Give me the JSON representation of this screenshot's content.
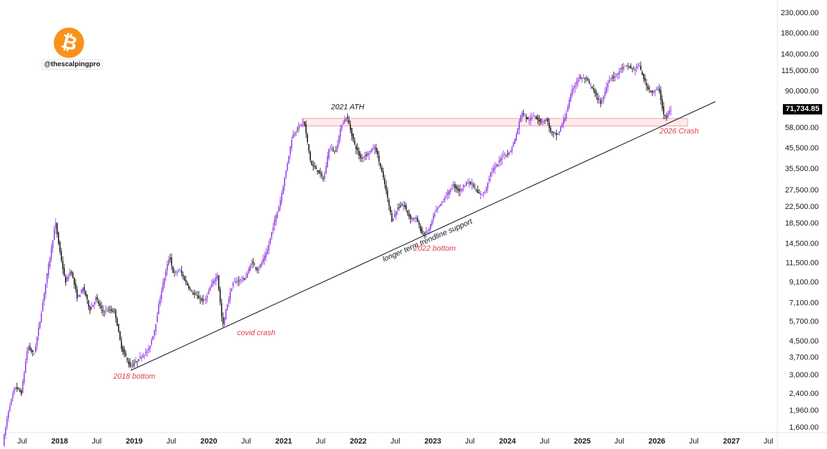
{
  "brand": {
    "logo_icon": "bitcoin-icon",
    "logo_glyph": "₿",
    "logo_color": "#f7931a",
    "handle": "@thescalpingpro"
  },
  "current_price_label": "71,734.85",
  "colors": {
    "bull": "#8a2be2",
    "bear": "#000000",
    "annotation_red": "#e03c4a",
    "zone_fill": "#fde2e4",
    "zone_stroke": "#f4a0a8"
  },
  "chart_data": {
    "type": "candlestick",
    "scale": "log",
    "ylim": [
      1500,
      250000
    ],
    "y_ticks": [
      "230,000.00",
      "180,000.00",
      "140,000.00",
      "115,000.00",
      "90,000.00",
      "71,000.00",
      "58,000.00",
      "45,500.00",
      "35,500.00",
      "27,500.00",
      "22,500.00",
      "18,500.00",
      "14,500.00",
      "11,500.00",
      "9,100.00",
      "7,100.00",
      "5,700.00",
      "4,500.00",
      "3,700.00",
      "3,000.00",
      "2,400.00",
      "1,960.00",
      "1,600.00"
    ],
    "y_tick_values": [
      230000,
      180000,
      140000,
      115000,
      90000,
      71000,
      58000,
      45500,
      35500,
      27500,
      22500,
      18500,
      14500,
      11500,
      9100,
      7100,
      5700,
      4500,
      3700,
      3000,
      2400,
      1960,
      1600
    ],
    "x_ticks": [
      {
        "label": "Jul",
        "date": "2017-07-01",
        "bold": false
      },
      {
        "label": "2018",
        "date": "2018-01-01",
        "bold": true
      },
      {
        "label": "Jul",
        "date": "2018-07-01",
        "bold": false
      },
      {
        "label": "2019",
        "date": "2019-01-01",
        "bold": true
      },
      {
        "label": "Jul",
        "date": "2019-07-01",
        "bold": false
      },
      {
        "label": "2020",
        "date": "2020-01-01",
        "bold": true
      },
      {
        "label": "Jul",
        "date": "2020-07-01",
        "bold": false
      },
      {
        "label": "2021",
        "date": "2021-01-01",
        "bold": true
      },
      {
        "label": "Jul",
        "date": "2021-07-01",
        "bold": false
      },
      {
        "label": "2022",
        "date": "2022-01-01",
        "bold": true
      },
      {
        "label": "Jul",
        "date": "2022-07-01",
        "bold": false
      },
      {
        "label": "2023",
        "date": "2023-01-01",
        "bold": true
      },
      {
        "label": "Jul",
        "date": "2023-07-01",
        "bold": false
      },
      {
        "label": "2024",
        "date": "2024-01-01",
        "bold": true
      },
      {
        "label": "Jul",
        "date": "2024-07-01",
        "bold": false
      },
      {
        "label": "2025",
        "date": "2025-01-01",
        "bold": true
      },
      {
        "label": "Jul",
        "date": "2025-07-01",
        "bold": false
      },
      {
        "label": "2026",
        "date": "2026-01-01",
        "bold": true
      },
      {
        "label": "Jul",
        "date": "2026-07-01",
        "bold": false
      },
      {
        "label": "2027",
        "date": "2027-01-01",
        "bold": true
      },
      {
        "label": "Jul",
        "date": "2027-07-01",
        "bold": false
      }
    ],
    "price_path": [
      [
        "2017-04-01",
        1300
      ],
      [
        "2017-05-01",
        2000
      ],
      [
        "2017-06-01",
        2600
      ],
      [
        "2017-07-01",
        2400
      ],
      [
        "2017-08-01",
        4200
      ],
      [
        "2017-09-01",
        3800
      ],
      [
        "2017-10-01",
        5800
      ],
      [
        "2017-11-01",
        9500
      ],
      [
        "2017-12-15",
        18500
      ],
      [
        "2018-01-01",
        14000
      ],
      [
        "2018-02-01",
        9000
      ],
      [
        "2018-03-01",
        10500
      ],
      [
        "2018-04-01",
        7500
      ],
      [
        "2018-05-01",
        8500
      ],
      [
        "2018-06-01",
        6500
      ],
      [
        "2018-07-01",
        7500
      ],
      [
        "2018-08-01",
        6400
      ],
      [
        "2018-09-01",
        6500
      ],
      [
        "2018-10-01",
        6400
      ],
      [
        "2018-11-01",
        4200
      ],
      [
        "2018-12-15",
        3300
      ],
      [
        "2019-01-15",
        3500
      ],
      [
        "2019-02-15",
        3800
      ],
      [
        "2019-03-15",
        4000
      ],
      [
        "2019-04-15",
        5200
      ],
      [
        "2019-05-15",
        8000
      ],
      [
        "2019-06-26",
        12500
      ],
      [
        "2019-07-15",
        10000
      ],
      [
        "2019-08-15",
        10500
      ],
      [
        "2019-09-15",
        9000
      ],
      [
        "2019-10-15",
        8000
      ],
      [
        "2019-11-15",
        7500
      ],
      [
        "2019-12-15",
        7200
      ],
      [
        "2020-01-15",
        8700
      ],
      [
        "2020-02-15",
        9900
      ],
      [
        "2020-03-12",
        5300
      ],
      [
        "2020-04-01",
        6800
      ],
      [
        "2020-05-01",
        9000
      ],
      [
        "2020-06-01",
        9300
      ],
      [
        "2020-07-01",
        9500
      ],
      [
        "2020-08-01",
        11500
      ],
      [
        "2020-09-01",
        10500
      ],
      [
        "2020-10-15",
        13000
      ],
      [
        "2020-11-15",
        18000
      ],
      [
        "2020-12-15",
        23000
      ],
      [
        "2021-01-15",
        34000
      ],
      [
        "2021-02-15",
        52000
      ],
      [
        "2021-03-15",
        58000
      ],
      [
        "2021-04-14",
        62000
      ],
      [
        "2021-05-19",
        37000
      ],
      [
        "2021-06-15",
        35000
      ],
      [
        "2021-07-20",
        31000
      ],
      [
        "2021-08-15",
        46000
      ],
      [
        "2021-09-15",
        43000
      ],
      [
        "2021-10-15",
        60000
      ],
      [
        "2021-11-10",
        66000
      ],
      [
        "2021-12-15",
        48000
      ],
      [
        "2022-01-15",
        40000
      ],
      [
        "2022-02-15",
        42000
      ],
      [
        "2022-03-28",
        46000
      ],
      [
        "2022-04-15",
        39000
      ],
      [
        "2022-05-15",
        29000
      ],
      [
        "2022-06-18",
        19000
      ],
      [
        "2022-07-15",
        22000
      ],
      [
        "2022-08-15",
        23000
      ],
      [
        "2022-09-15",
        19500
      ],
      [
        "2022-10-15",
        19500
      ],
      [
        "2022-11-15",
        16000
      ],
      [
        "2022-12-15",
        16800
      ],
      [
        "2023-01-15",
        21000
      ],
      [
        "2023-02-15",
        23500
      ],
      [
        "2023-03-15",
        26000
      ],
      [
        "2023-04-15",
        29000
      ],
      [
        "2023-05-15",
        27000
      ],
      [
        "2023-06-15",
        30000
      ],
      [
        "2023-07-15",
        29500
      ],
      [
        "2023-08-15",
        26000
      ],
      [
        "2023-09-15",
        26500
      ],
      [
        "2023-10-15",
        34000
      ],
      [
        "2023-11-15",
        37000
      ],
      [
        "2023-12-15",
        42000
      ],
      [
        "2024-01-15",
        42500
      ],
      [
        "2024-02-15",
        52000
      ],
      [
        "2024-03-14",
        70000
      ],
      [
        "2024-04-15",
        63000
      ],
      [
        "2024-05-15",
        67000
      ],
      [
        "2024-06-15",
        62000
      ],
      [
        "2024-07-15",
        64000
      ],
      [
        "2024-08-05",
        54000
      ],
      [
        "2024-09-06",
        53000
      ],
      [
        "2024-10-15",
        67000
      ],
      [
        "2024-11-15",
        90000
      ],
      [
        "2024-12-17",
        105000
      ],
      [
        "2025-01-20",
        104000
      ],
      [
        "2025-02-15",
        96000
      ],
      [
        "2025-03-15",
        84000
      ],
      [
        "2025-04-08",
        77000
      ],
      [
        "2025-05-15",
        104000
      ],
      [
        "2025-06-15",
        107000
      ],
      [
        "2025-07-15",
        118000
      ],
      [
        "2025-08-14",
        121000
      ],
      [
        "2025-09-15",
        115000
      ],
      [
        "2025-10-06",
        124000
      ],
      [
        "2025-11-15",
        95000
      ],
      [
        "2025-12-15",
        88000
      ],
      [
        "2026-01-15",
        93000
      ],
      [
        "2026-02-05",
        68000
      ],
      [
        "2026-02-20",
        65000
      ],
      [
        "2026-03-10",
        71734.85
      ]
    ],
    "trendline": {
      "start": [
        "2018-12-15",
        3150
      ],
      "end": [
        "2026-10-15",
        79000
      ]
    },
    "resistance_zone": {
      "x_start": "2021-04-01",
      "x_end": "2026-06-01",
      "y_low": 59000,
      "y_high": 64500
    },
    "annotations": [
      {
        "text": "2021 ATH",
        "date": "2021-11-10",
        "price": 72000,
        "color": "#131722"
      },
      {
        "text": "2026 Crash",
        "date": "2026-04-20",
        "price": 54000,
        "color": "#e03c4a"
      },
      {
        "text": "2022 bottom",
        "date": "2023-01-10",
        "price": 13200,
        "color": "#e03c4a"
      },
      {
        "text": "covid crash",
        "date": "2020-08-20",
        "price": 4800,
        "color": "#e03c4a"
      },
      {
        "text": "2018 bottom",
        "date": "2019-01-01",
        "price": 2850,
        "color": "#e03c4a"
      },
      {
        "text": "longer term trendline support",
        "date": "2022-12-10",
        "price": 14600,
        "color": "#131722",
        "angle": -23.5
      }
    ]
  }
}
